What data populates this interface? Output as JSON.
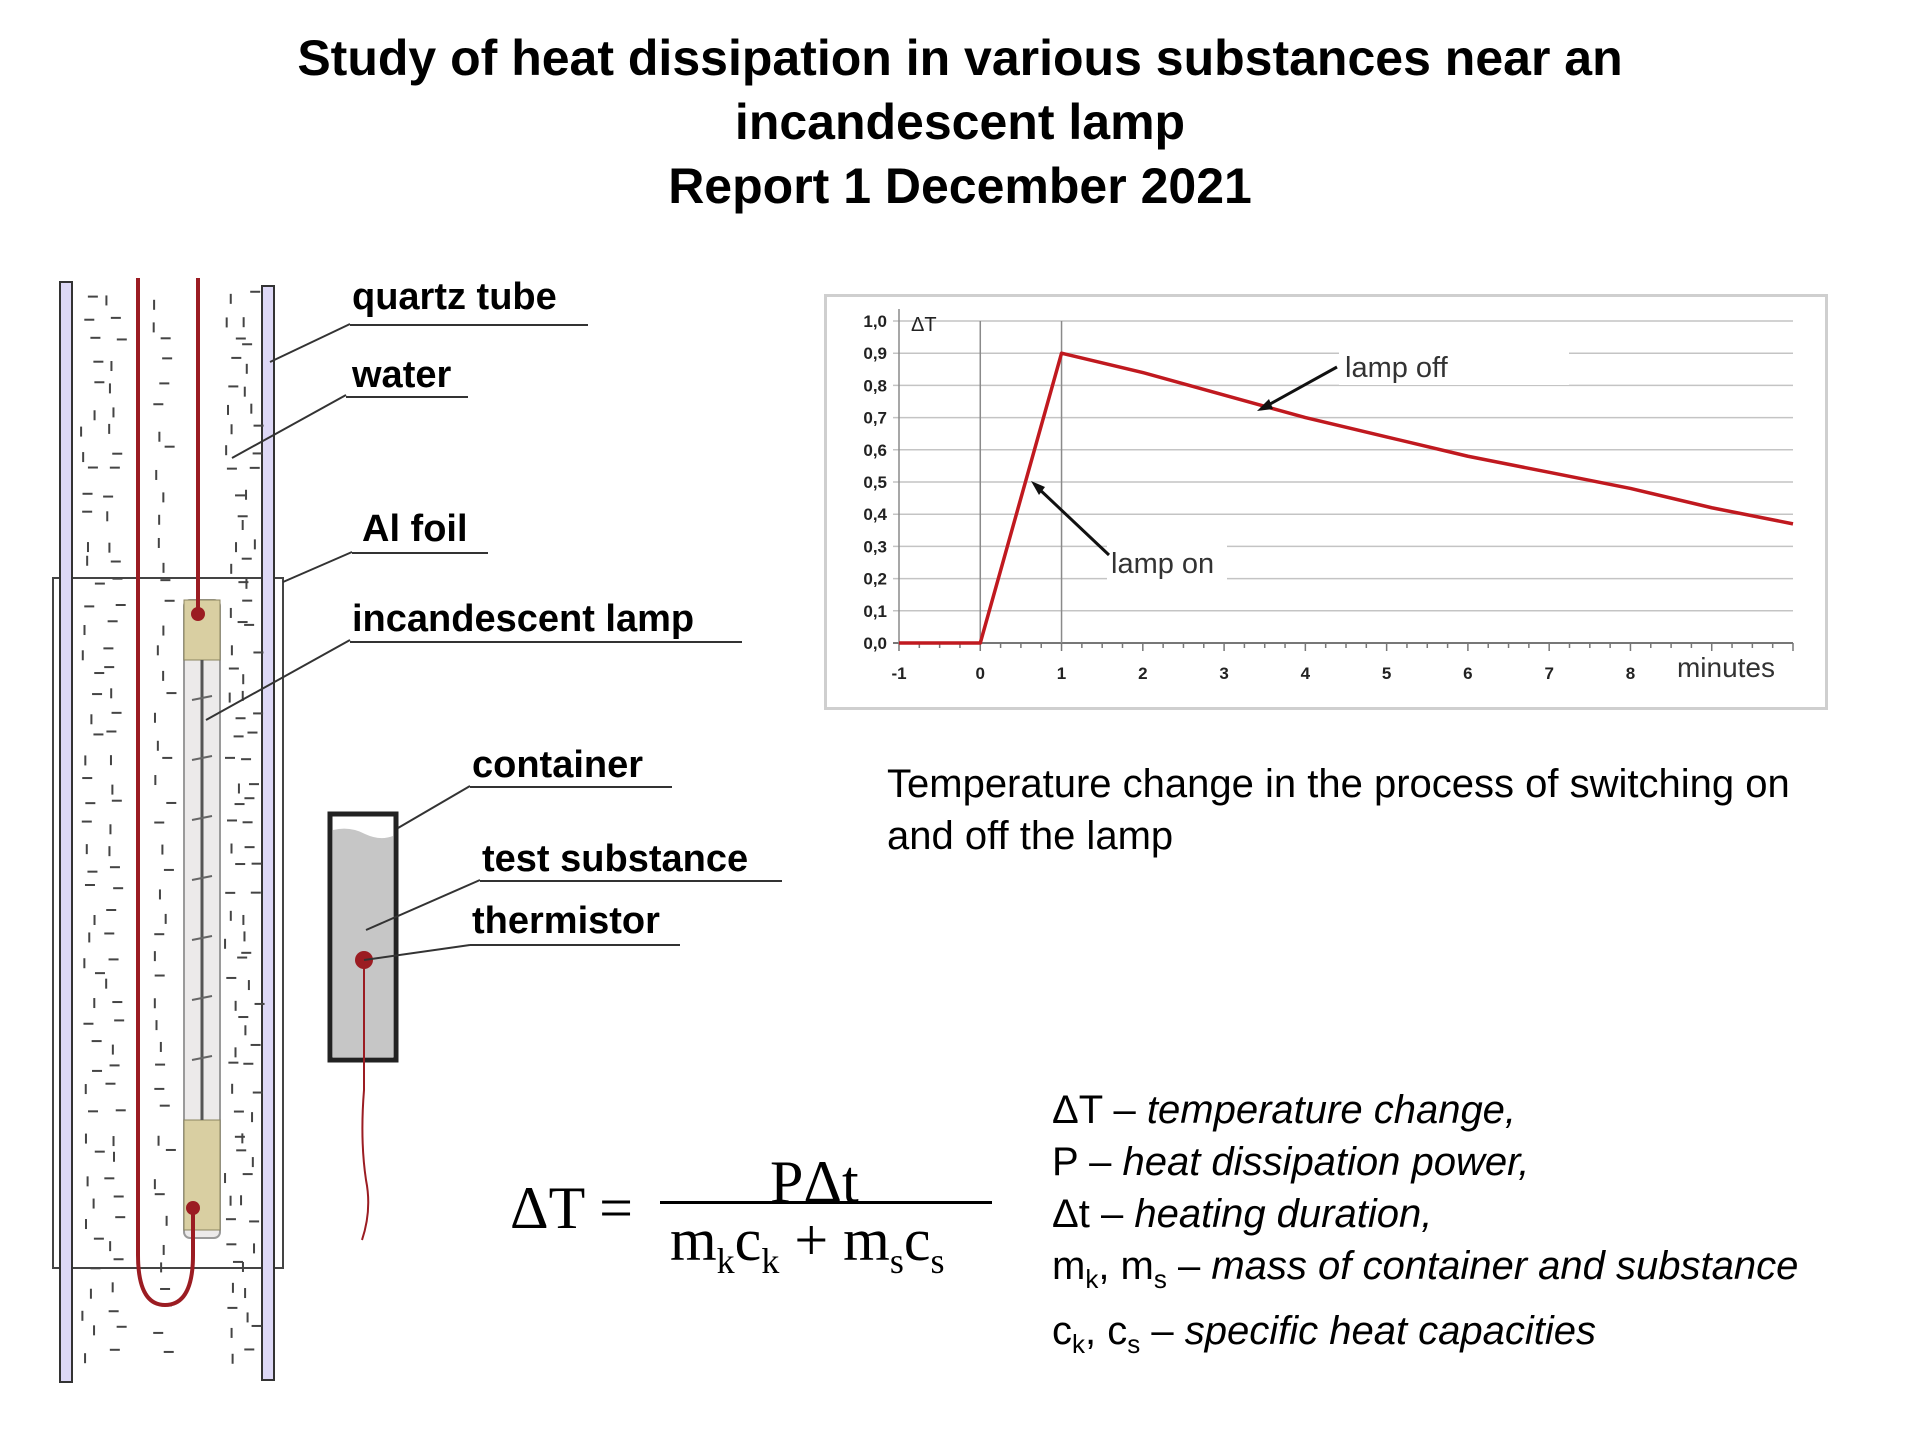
{
  "header": {
    "title_line1": "Study of heat dissipation in various substances near an",
    "title_line2": "incandescent lamp",
    "title_line3": "Report 1 December 2021"
  },
  "diagram_labels": {
    "quartz_tube": "quartz tube",
    "water": "water",
    "al_foil": "Al foil",
    "incandescent_lamp": "incandescent lamp",
    "container": "container",
    "test_substance": "test substance",
    "thermistor": "thermistor"
  },
  "chart_data": {
    "type": "line",
    "title": "",
    "xlabel": "minutes",
    "ylabel": "ΔT",
    "xlim": [
      -1,
      10
    ],
    "ylim": [
      0,
      1.0
    ],
    "x_ticks": [
      "-1",
      "0",
      "1",
      "2",
      "3",
      "4",
      "5",
      "6",
      "7",
      "8"
    ],
    "y_ticks": [
      "0,0",
      "0,1",
      "0,2",
      "0,3",
      "0,4",
      "0,5",
      "0,6",
      "0,7",
      "0,8",
      "0,9",
      "1,0"
    ],
    "grid": true,
    "series": [
      {
        "name": "ΔT",
        "color": "#c0191f",
        "x": [
          -1,
          0,
          1,
          2,
          3,
          4,
          5,
          6,
          7,
          8,
          9,
          10
        ],
        "y": [
          0,
          0,
          0.9,
          0.84,
          0.77,
          0.7,
          0.64,
          0.58,
          0.53,
          0.48,
          0.42,
          0.37
        ]
      }
    ],
    "annotations": [
      {
        "text": "lamp off"
      },
      {
        "text": "lamp on"
      }
    ]
  },
  "caption": {
    "line1": "Temperature change in the process of switching on",
    "line2": "and off the lamp"
  },
  "formula": {
    "lhs": "ΔT =",
    "numerator": "PΔt",
    "den_m1": "m",
    "den_k1": "k",
    "den_c1": "c",
    "den_k2": "k",
    "den_plus": " + ",
    "den_m2": "m",
    "den_s1": "s",
    "den_c2": "c",
    "den_s2": "s"
  },
  "legend": {
    "dT_symbol": "ΔT –",
    "dT_desc": "temperature change,",
    "P_symbol": "P –",
    "P_desc": "heat dissipation power,",
    "dt_symbol": "Δt –",
    "dt_desc": "heating duration,",
    "m_symbol": "m",
    "m_sub_k": "k",
    "m_mid": ", m",
    "m_sub_s": "s",
    "m_dash": " –",
    "m_desc": "mass of container and substance",
    "c_symbol": "c",
    "c_sub_k": "k",
    "c_mid": ", c",
    "c_sub_s": "s",
    "c_dash": " –",
    "c_desc": "specific heat capacities"
  }
}
